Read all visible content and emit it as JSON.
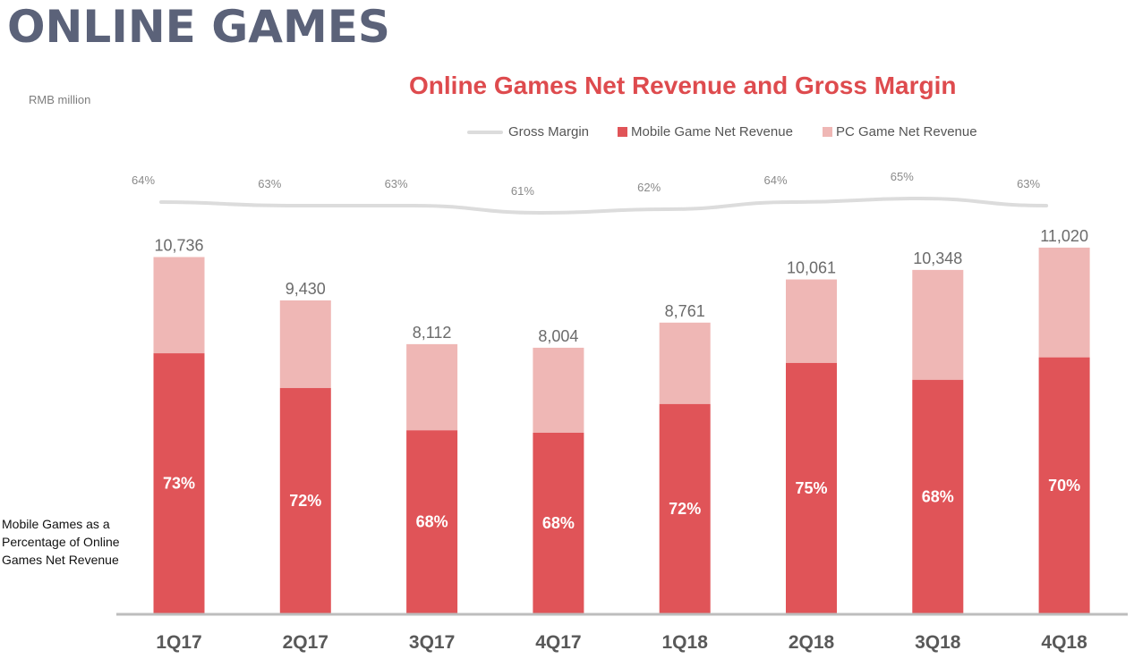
{
  "page": {
    "title": "ONLINE GAMES",
    "unit": "RMB million",
    "side_note": "Mobile Games as a Percentage of Online Games Net Revenue"
  },
  "colors": {
    "mobile": "#e05458",
    "pc": "#efb7b5",
    "margin_line": "#dcdcdc",
    "title_red": "#de4b4e",
    "axis": "#bdbdbd"
  },
  "chart_data": {
    "type": "bar",
    "stacked": true,
    "title": "Online Games Net Revenue and Gross Margin",
    "categories": [
      "1Q17",
      "2Q17",
      "3Q17",
      "4Q17",
      "1Q18",
      "2Q18",
      "3Q18",
      "4Q18"
    ],
    "totals": [
      10736,
      9430,
      8112,
      8004,
      8761,
      10061,
      10348,
      11020
    ],
    "total_labels": [
      "10,736",
      "9,430",
      "8,112",
      "8,004",
      "8,761",
      "10,061",
      "10,348",
      "11,020"
    ],
    "mobile_share_pct": [
      73,
      72,
      68,
      68,
      72,
      75,
      68,
      70
    ],
    "mobile_share_labels": [
      "73%",
      "72%",
      "68%",
      "68%",
      "72%",
      "75%",
      "68%",
      "70%"
    ],
    "series": [
      {
        "name": "Mobile Game Net Revenue",
        "values": [
          7837,
          6790,
          5516,
          5443,
          6308,
          7546,
          7037,
          7714
        ]
      },
      {
        "name": "PC Game Net Revenue",
        "values": [
          2899,
          2640,
          2596,
          2561,
          2453,
          2515,
          3311,
          3306
        ]
      }
    ],
    "gross_margin": {
      "name": "Gross Margin",
      "values": [
        64,
        63,
        63,
        61,
        62,
        64,
        65,
        63
      ],
      "labels": [
        "64%",
        "63%",
        "63%",
        "61%",
        "62%",
        "64%",
        "65%",
        "63%"
      ]
    },
    "legend": {
      "position": "top-right",
      "items": [
        "Gross Margin",
        "Mobile Game Net Revenue",
        "PC Game Net Revenue"
      ]
    },
    "ylim": [
      0,
      11500
    ],
    "grid": false
  }
}
